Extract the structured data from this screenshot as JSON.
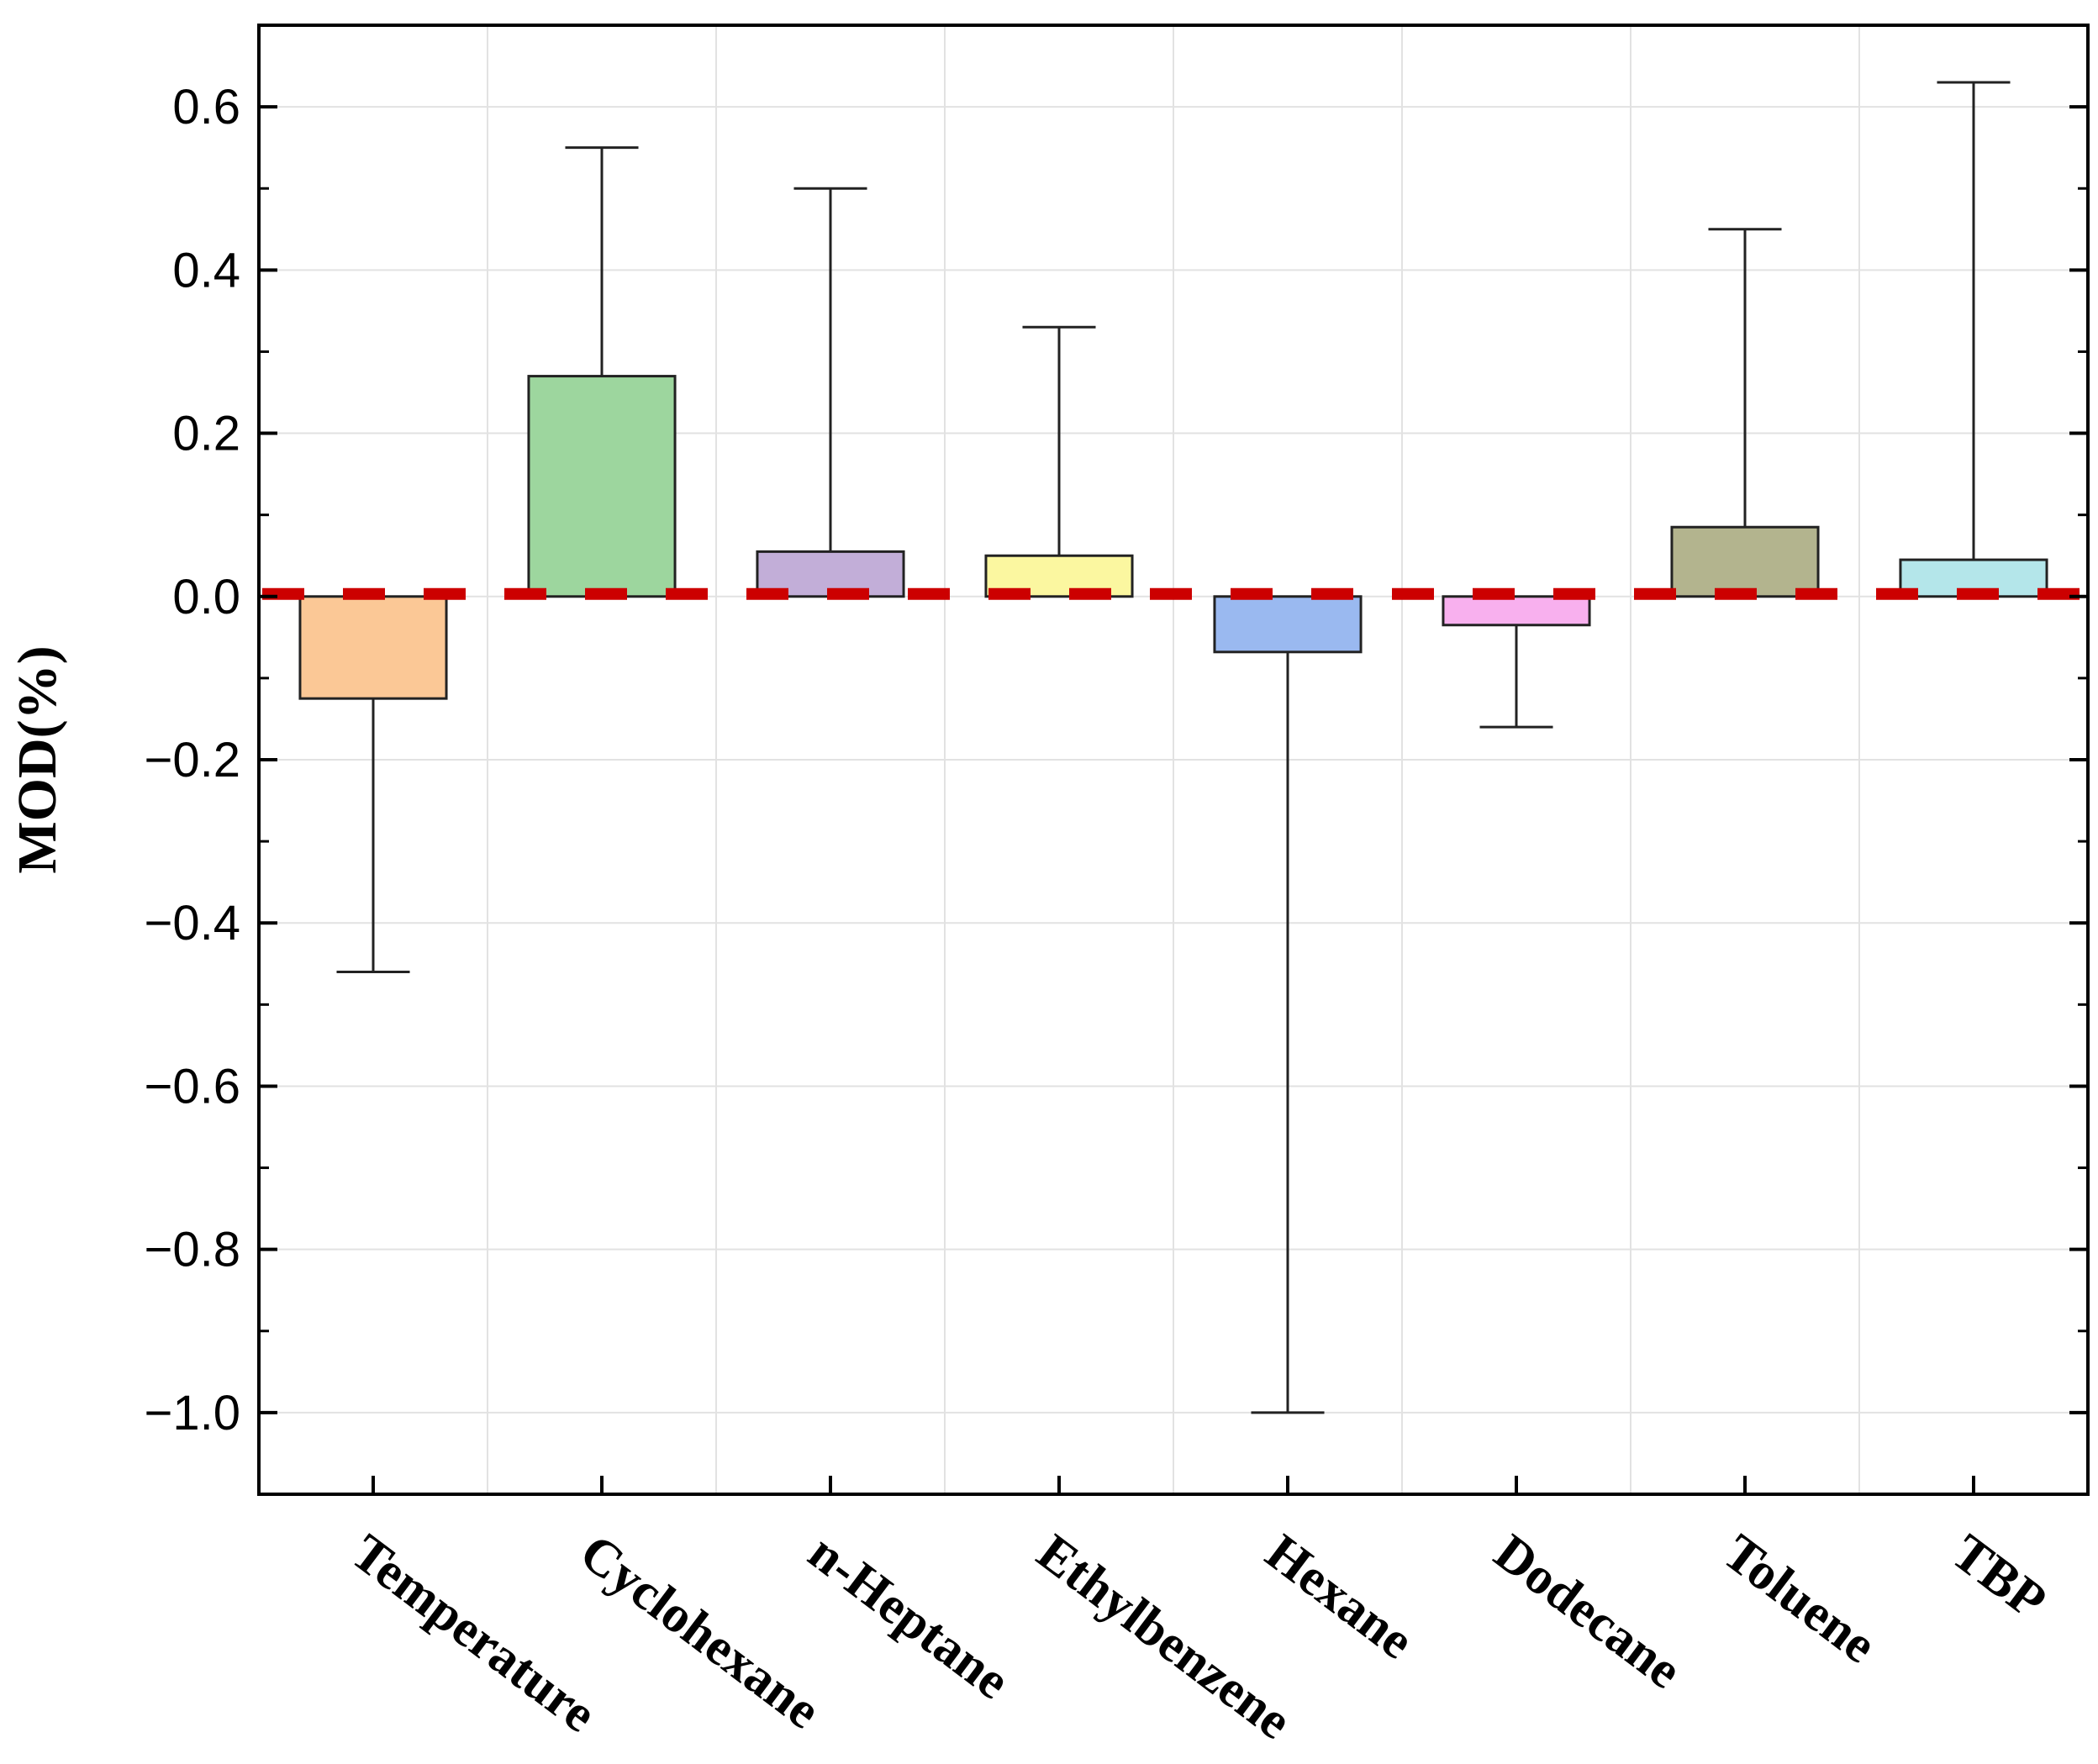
{
  "chart_data": {
    "type": "bar",
    "title": "",
    "xlabel": "",
    "ylabel": "MOD(%)",
    "ylim": [
      -1.1,
      0.7
    ],
    "yticks": [
      0.6,
      0.4,
      0.2,
      0.0,
      -0.2,
      -0.4,
      -0.6,
      -0.8,
      -1.0
    ],
    "ytick_labels": [
      "0.6",
      "0.4",
      "0.2",
      "0.0",
      "−0.2",
      "−0.4",
      "−0.6",
      "−0.8",
      "−1.0"
    ],
    "grid": true,
    "reference_line": {
      "value": 0.0,
      "color": "#cc0000",
      "style": "dashed"
    },
    "categories": [
      "Temperature",
      "Cyclohexane",
      "n-Heptane",
      "Ethylbenzene",
      "Hexane",
      "Dodecane",
      "Toluene",
      "TBP"
    ],
    "values": [
      -0.125,
      0.27,
      0.055,
      0.05,
      -0.068,
      -0.035,
      0.085,
      0.045
    ],
    "error_extents": [
      -0.46,
      0.55,
      0.5,
      0.33,
      -1.0,
      -0.16,
      0.45,
      0.63
    ],
    "colors": [
      "#fbc896",
      "#9dd69e",
      "#c2aed8",
      "#fbf7a0",
      "#9ab9f0",
      "#f8b0ee",
      "#b3b48e",
      "#b4e6ea"
    ]
  }
}
